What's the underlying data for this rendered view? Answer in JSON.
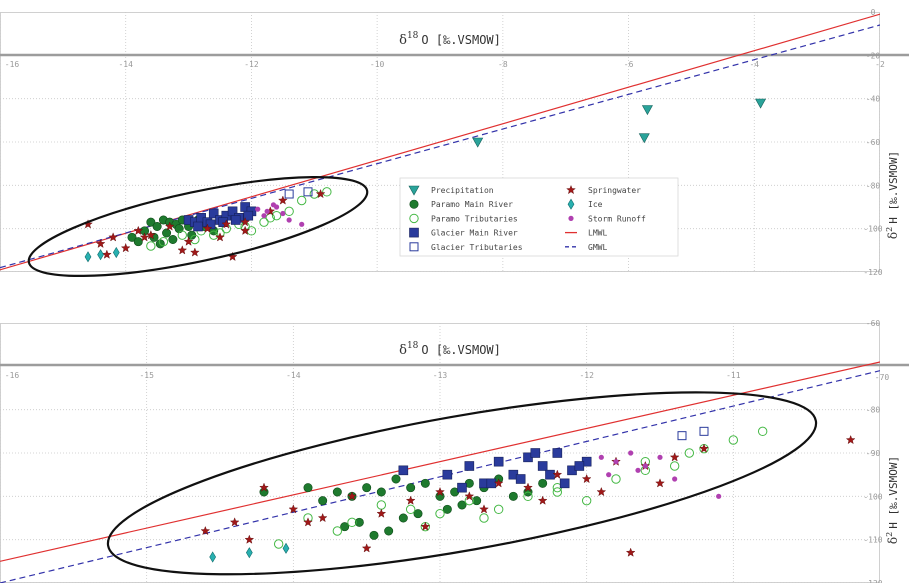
{
  "chart_data": [
    {
      "type": "scatter",
      "xlabel_main": "δ",
      "xlabel_sup": "18",
      "xlabel_rest": "O [‰.VSMOW]",
      "ylabel_main": "δ",
      "ylabel_sup": "2",
      "ylabel_rest": "H [‰.VSMOW]",
      "xlim": [
        -16,
        -2
      ],
      "ylim": [
        -120,
        0
      ],
      "xticks": [
        -16,
        -14,
        -12,
        -10,
        -8,
        -6,
        -4,
        -2
      ],
      "yticks": [
        -20,
        -40,
        -60,
        -80,
        -100,
        -120
      ],
      "ticks_top": "0",
      "grid": true,
      "legend_position": "center-right",
      "lines": [
        {
          "name": "LMWL",
          "x": [
            -16,
            -2
          ],
          "y": [
            -119,
            -1
          ],
          "color": "#e03030",
          "dash": false
        },
        {
          "name": "GMWL",
          "x": [
            -16,
            -2
          ],
          "y": [
            -118,
            -6
          ],
          "color": "#3333aa",
          "dash": true
        }
      ],
      "ellipse": {
        "cx": -12.85,
        "cy": -99,
        "rx_units": 2.75,
        "ry_units": 16,
        "angle": -12
      },
      "series": [
        {
          "name": "Precipitation",
          "marker": "triangle-down",
          "color": "#2aa39a",
          "x": [
            -8.4,
            -5.7,
            -5.75,
            -3.9
          ],
          "y": [
            -60,
            -45,
            -58,
            -42
          ]
        },
        {
          "name": "Paramo Main River",
          "marker": "circle",
          "color": "#1e7a2e",
          "x": [
            -13.9,
            -13.7,
            -13.6,
            -13.5,
            -13.4,
            -13.3,
            -13.2,
            -13.1,
            -13.0,
            -12.9,
            -13.55,
            -13.35,
            -13.15,
            -12.95,
            -12.75,
            -12.6,
            -13.8,
            -13.45,
            -13.25,
            -12.85
          ],
          "y": [
            -104,
            -101,
            -97,
            -99,
            -96,
            -97,
            -98,
            -96,
            -99,
            -97,
            -104,
            -102,
            -100,
            -103,
            -99,
            -101,
            -106,
            -107,
            -105,
            -96
          ]
        },
        {
          "name": "Paramo Tributaries",
          "marker": "open-circle",
          "color": "#44b844",
          "x": [
            -13.4,
            -13.1,
            -12.8,
            -12.6,
            -12.4,
            -12.2,
            -12.0,
            -11.8,
            -11.6,
            -11.4,
            -11.2,
            -11.0,
            -10.8,
            -13.6,
            -12.9,
            -12.5,
            -12.1,
            -11.7
          ],
          "y": [
            -106,
            -103,
            -101,
            -103,
            -100,
            -98,
            -101,
            -97,
            -94,
            -92,
            -87,
            -84,
            -83,
            -108,
            -105,
            -102,
            -99,
            -95
          ]
        },
        {
          "name": "Glacier Main River",
          "marker": "square",
          "color": "#2a3b9c",
          "x": [
            -13.0,
            -12.9,
            -12.8,
            -12.7,
            -12.6,
            -12.5,
            -12.4,
            -12.3,
            -12.2,
            -12.1,
            -12.0,
            -12.85,
            -12.65,
            -12.45,
            -12.25,
            -12.05
          ],
          "y": [
            -96,
            -97,
            -95,
            -97,
            -93,
            -96,
            -94,
            -92,
            -95,
            -90,
            -92,
            -99,
            -98,
            -97,
            -96,
            -94
          ]
        },
        {
          "name": "Glacier Tributaries",
          "marker": "open-square",
          "color": "#2a3b9c",
          "x": [
            -11.4,
            -11.1
          ],
          "y": [
            -84,
            -83
          ]
        },
        {
          "name": "Springwater",
          "marker": "star",
          "color": "#a01818",
          "x": [
            -14.4,
            -14.2,
            -14.0,
            -13.8,
            -13.6,
            -13.3,
            -13.0,
            -12.7,
            -12.4,
            -12.1,
            -11.7,
            -11.5,
            -10.9,
            -14.6,
            -14.3,
            -13.7,
            -13.1,
            -12.9,
            -12.5,
            -12.1,
            -12.3
          ],
          "y": [
            -107,
            -104,
            -109,
            -101,
            -103,
            -99,
            -106,
            -100,
            -98,
            -97,
            -92,
            -87,
            -84,
            -98,
            -112,
            -104,
            -110,
            -111,
            -104,
            -101,
            -113
          ]
        },
        {
          "name": "Ice",
          "marker": "diamond",
          "color": "#28b0b0",
          "x": [
            -14.6,
            -14.4,
            -14.15
          ],
          "y": [
            -113,
            -112,
            -111
          ]
        },
        {
          "name": "Storm Runoff",
          "marker": "small-dot",
          "color": "#b040b0",
          "x": [
            -11.9,
            -11.75,
            -11.6,
            -11.5,
            -11.8,
            -11.65,
            -11.4,
            -11.2
          ],
          "y": [
            -91,
            -92,
            -90,
            -93,
            -94,
            -89,
            -96,
            -98
          ]
        }
      ]
    },
    {
      "type": "scatter",
      "xlabel_main": "δ",
      "xlabel_sup": "18",
      "xlabel_rest": "O [‰.VSMOW]",
      "ylabel_main": "δ",
      "ylabel_sup": "2",
      "ylabel_rest": "H [‰.VSMOW]",
      "xlim": [
        -16,
        -10
      ],
      "ylim": [
        -120,
        -60
      ],
      "xticks": [
        -16,
        -15,
        -14,
        -13,
        -12,
        -11
      ],
      "yticks": [
        -80,
        -90,
        -100,
        -110,
        -120
      ],
      "ticks_top": "-60",
      "ticks_right_partial": "-70",
      "grid": true,
      "lines": [
        {
          "name": "LMWL",
          "x": [
            -16,
            -10
          ],
          "y": [
            -115,
            -69
          ],
          "color": "#e03030",
          "dash": false
        },
        {
          "name": "GMWL",
          "x": [
            -16,
            -10
          ],
          "y": [
            -120,
            -71
          ],
          "color": "#3333aa",
          "dash": true
        }
      ],
      "ellipse": {
        "cx": -12.85,
        "cy": -97,
        "rx_units": 2.45,
        "ry_units": 15.5,
        "angle": -10
      },
      "series": [
        {
          "name": "Paramo Main River",
          "marker": "circle",
          "color": "#1e7a2e",
          "x": [
            -14.2,
            -13.9,
            -13.8,
            -13.7,
            -13.6,
            -13.5,
            -13.4,
            -13.3,
            -13.2,
            -13.1,
            -13.0,
            -12.9,
            -12.8,
            -12.7,
            -12.6,
            -12.5,
            -12.4,
            -12.3,
            -13.55,
            -13.35,
            -13.15,
            -12.95,
            -12.75,
            -13.65,
            -13.45,
            -13.25,
            -12.85
          ],
          "y": [
            -99,
            -98,
            -101,
            -99,
            -100,
            -98,
            -99,
            -96,
            -98,
            -97,
            -100,
            -99,
            -97,
            -98,
            -96,
            -100,
            -99,
            -97,
            -106,
            -108,
            -104,
            -103,
            -101,
            -107,
            -109,
            -105,
            -102
          ]
        },
        {
          "name": "Paramo Tributaries",
          "marker": "open-circle",
          "color": "#44b844",
          "x": [
            -14.1,
            -13.9,
            -13.6,
            -13.4,
            -13.2,
            -13.0,
            -12.8,
            -12.6,
            -12.4,
            -12.2,
            -12.0,
            -11.8,
            -11.6,
            -11.4,
            -11.2,
            -11.0,
            -10.8,
            -13.7,
            -13.1,
            -12.7,
            -12.2,
            -11.6,
            -11.3
          ],
          "y": [
            -111,
            -105,
            -106,
            -102,
            -103,
            -104,
            -101,
            -103,
            -100,
            -99,
            -101,
            -96,
            -94,
            -93,
            -89,
            -87,
            -85,
            -108,
            -107,
            -105,
            -98,
            -92,
            -90
          ]
        },
        {
          "name": "Glacier Main River",
          "marker": "square",
          "color": "#2a3b9c",
          "x": [
            -13.25,
            -12.95,
            -12.8,
            -12.7,
            -12.6,
            -12.5,
            -12.4,
            -12.3,
            -12.2,
            -12.1,
            -12.0,
            -12.85,
            -12.65,
            -12.45,
            -12.25,
            -12.15,
            -12.05,
            -12.35
          ],
          "y": [
            -94,
            -95,
            -93,
            -97,
            -92,
            -95,
            -91,
            -93,
            -90,
            -94,
            -92,
            -98,
            -97,
            -96,
            -95,
            -97,
            -93,
            -90
          ]
        },
        {
          "name": "Glacier Tributaries",
          "marker": "open-square",
          "color": "#2a3b9c",
          "x": [
            -11.35,
            -11.2
          ],
          "y": [
            -86,
            -85
          ]
        },
        {
          "name": "Springwater",
          "marker": "star",
          "color": "#a01818",
          "x": [
            -14.4,
            -14.2,
            -14.0,
            -13.8,
            -13.6,
            -13.4,
            -13.2,
            -13.0,
            -12.8,
            -12.6,
            -12.4,
            -12.2,
            -12.0,
            -11.8,
            -11.6,
            -11.4,
            -11.2,
            -10.2,
            -14.6,
            -14.3,
            -13.9,
            -13.5,
            -13.1,
            -12.7,
            -12.3,
            -11.9,
            -11.5,
            -11.7
          ],
          "y": [
            -106,
            -98,
            -103,
            -105,
            -100,
            -104,
            -101,
            -99,
            -100,
            -97,
            -98,
            -95,
            -96,
            -92,
            -93,
            -91,
            -89,
            -87,
            -108,
            -110,
            -106,
            -112,
            -107,
            -103,
            -101,
            -99,
            -97,
            -113
          ]
        },
        {
          "name": "Ice",
          "marker": "diamond",
          "color": "#28b0b0",
          "x": [
            -14.55,
            -14.3,
            -14.05
          ],
          "y": [
            -114,
            -113,
            -112
          ]
        },
        {
          "name": "Storm Runoff",
          "marker": "small-dot",
          "color": "#b040b0",
          "x": [
            -11.9,
            -11.8,
            -11.7,
            -11.6,
            -11.5,
            -11.85,
            -11.65,
            -11.4,
            -11.1
          ],
          "y": [
            -91,
            -92,
            -90,
            -93,
            -91,
            -95,
            -94,
            -96,
            -100
          ]
        }
      ]
    }
  ],
  "legend": [
    {
      "label": "Precipitation",
      "marker": "triangle-down",
      "color": "#2aa39a"
    },
    {
      "label": "Paramo Main River",
      "marker": "circle",
      "color": "#1e7a2e"
    },
    {
      "label": "Paramo Tributaries",
      "marker": "open-circle",
      "color": "#44b844"
    },
    {
      "label": "Glacier Main River",
      "marker": "square",
      "color": "#2a3b9c"
    },
    {
      "label": "Glacier Tributaries",
      "marker": "open-square",
      "color": "#2a3b9c"
    },
    {
      "label": "Springwater",
      "marker": "star",
      "color": "#a01818"
    },
    {
      "label": "Ice",
      "marker": "diamond",
      "color": "#28b0b0"
    },
    {
      "label": "Storm Runoff",
      "marker": "small-dot",
      "color": "#b040b0"
    },
    {
      "label": "LMWL",
      "marker": "line",
      "color": "#e03030"
    },
    {
      "label": "GMWL",
      "marker": "dashed-line",
      "color": "#3333aa"
    }
  ]
}
